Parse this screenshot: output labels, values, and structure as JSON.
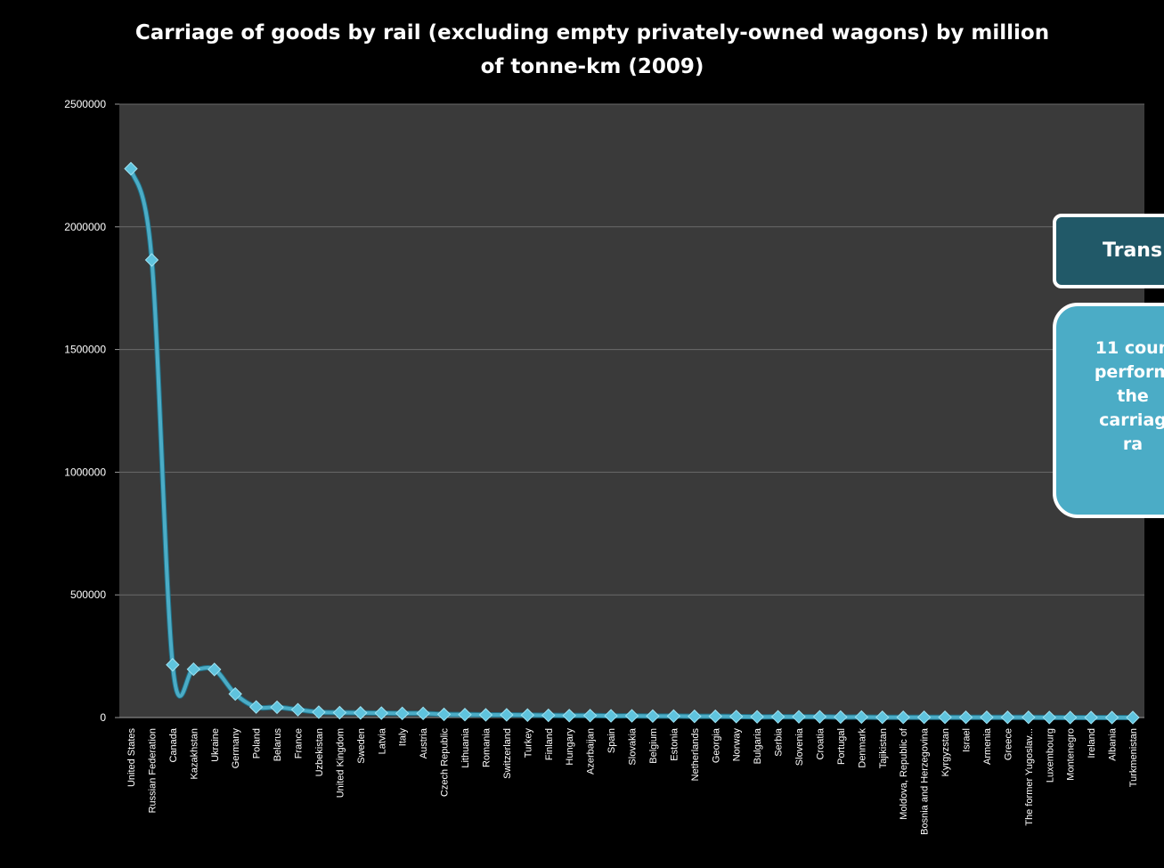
{
  "slide": {
    "background": "#000000"
  },
  "chart_data": {
    "type": "line",
    "title": "Carriage of goods by rail (excluding empty privately-owned wagons) by million\nof tonne-km (2009)",
    "xlabel": "",
    "ylabel": "",
    "ylim": [
      0,
      2500000
    ],
    "yticks": [
      "2500000",
      "2000000",
      "1500000",
      "1000000",
      "500000",
      "0"
    ],
    "ytick_values": [
      2500000,
      2000000,
      1500000,
      1000000,
      500000,
      0
    ],
    "grid": true,
    "legend": "none",
    "plot_background": "#3a3a3a",
    "line_color": "#4bacc6",
    "categories": [
      "United States",
      "Russian Federation",
      "Canada",
      "Kazakhstan",
      "Ukraine",
      "Germany",
      "Poland",
      "Belarus",
      "France",
      "Uzbekistan",
      "United Kingdom",
      "Sweden",
      "Latvia",
      "Italy",
      "Austria",
      "Czech Republic",
      "Lithuania",
      "Romania",
      "Switzerland",
      "Turkey",
      "Finland",
      "Hungary",
      "Azerbaijan",
      "Spain",
      "Slovakia",
      "Belgium",
      "Estonia",
      "Netherlands",
      "Georgia",
      "Norway",
      "Bulgaria",
      "Serbia",
      "Slovenia",
      "Croatia",
      "Portugal",
      "Denmark",
      "Tajikistan",
      "Moldova, Republic of",
      "Bosnia and Herzegovina",
      "Kyrgyzstan",
      "Israel",
      "Armenia",
      "Greece",
      "The former Yugoslav...",
      "Luxembourg",
      "Montenegro",
      "Ireland",
      "Albania",
      "Turkmenistan"
    ],
    "series": [
      {
        "values": [
          2237000,
          1865000,
          215000,
          197000,
          196000,
          96000,
          43000,
          42000,
          32000,
          22000,
          20000,
          19000,
          18000,
          17000,
          17000,
          13000,
          12000,
          11000,
          11000,
          10000,
          9000,
          8000,
          8000,
          7000,
          7000,
          6000,
          6000,
          5000,
          5000,
          4000,
          3000,
          3000,
          3000,
          3000,
          2000,
          2000,
          1000,
          1000,
          1000,
          1000,
          1000,
          1000,
          1000,
          1000,
          300,
          200,
          100,
          100,
          50
        ]
      }
    ]
  },
  "callouts": {
    "title_text": "Trans",
    "body_text": "11 coun\nperform\nthe\ncarriag\nra"
  }
}
